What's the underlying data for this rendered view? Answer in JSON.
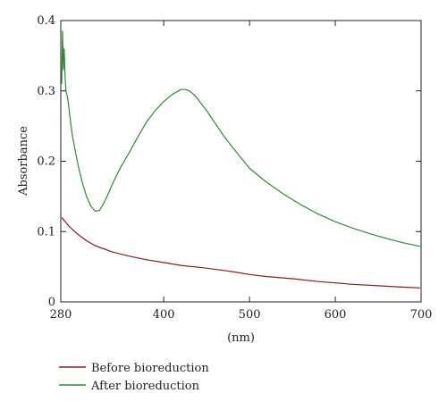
{
  "chart_data": {
    "type": "line",
    "title": "",
    "xlabel": "(nm)",
    "ylabel": "Absorbance",
    "xlim": [
      280,
      700
    ],
    "ylim": [
      0,
      0.4
    ],
    "x_ticks": [
      280,
      400,
      500,
      600,
      700
    ],
    "x_tick_labels": [
      "280",
      "400",
      "500",
      "600",
      "700"
    ],
    "y_ticks": [
      0,
      0.1,
      0.2,
      0.3,
      0.4
    ],
    "y_tick_labels": [
      "0",
      "0.1",
      "0.2",
      "0.3",
      "0.4"
    ],
    "grid": false,
    "legend_position": "bottom-left",
    "series": [
      {
        "name": "Before bioreduction",
        "color": "#8b1a1a",
        "x": [
          281,
          290,
          300,
          310,
          320,
          340,
          360,
          380,
          400,
          420,
          450,
          480,
          500,
          520,
          550,
          580,
          600,
          620,
          650,
          680,
          699
        ],
        "y": [
          0.12,
          0.107,
          0.096,
          0.087,
          0.08,
          0.071,
          0.065,
          0.06,
          0.056,
          0.052,
          0.048,
          0.043,
          0.039,
          0.036,
          0.033,
          0.029,
          0.027,
          0.025,
          0.023,
          0.021,
          0.02
        ]
      },
      {
        "name": "After bioreduction",
        "color": "#2e8b2e",
        "x": [
          281,
          282,
          283,
          284,
          285,
          286,
          288,
          290,
          293,
          296,
          300,
          305,
          310,
          315,
          320,
          325,
          330,
          335,
          340,
          345,
          350,
          360,
          370,
          380,
          390,
          400,
          410,
          420,
          425,
          430,
          435,
          440,
          450,
          460,
          470,
          480,
          490,
          500,
          520,
          540,
          560,
          580,
          600,
          620,
          640,
          660,
          680,
          699
        ],
        "y": [
          0.31,
          0.385,
          0.33,
          0.36,
          0.32,
          0.3,
          0.29,
          0.27,
          0.24,
          0.22,
          0.195,
          0.17,
          0.15,
          0.136,
          0.129,
          0.13,
          0.14,
          0.153,
          0.167,
          0.18,
          0.192,
          0.213,
          0.235,
          0.256,
          0.272,
          0.285,
          0.295,
          0.302,
          0.302,
          0.3,
          0.295,
          0.288,
          0.272,
          0.254,
          0.236,
          0.22,
          0.205,
          0.19,
          0.17,
          0.153,
          0.138,
          0.125,
          0.114,
          0.105,
          0.097,
          0.09,
          0.084,
          0.079
        ]
      }
    ]
  }
}
